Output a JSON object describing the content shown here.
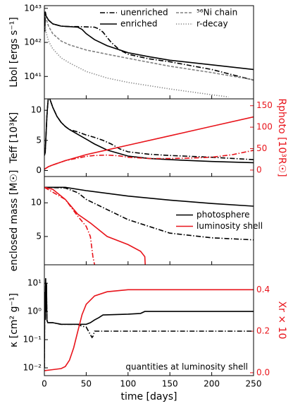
{
  "chart_data": [
    {
      "type": "line",
      "ylabel": "Lbol [ergs s⁻¹]",
      "ylog": true,
      "xlim": [
        0,
        250
      ],
      "xticks": [
        0,
        50,
        100,
        150,
        200,
        250
      ],
      "ylim": [
        2.2e+40,
        1.2e+43
      ],
      "yticks": [
        {
          "value": 1e+41,
          "label": "10⁴¹"
        },
        {
          "value": 1e+42,
          "label": "10⁴²"
        },
        {
          "value": 1e+43,
          "label": "10⁴³"
        }
      ],
      "legend_loc": "upper right",
      "legend_ncol": 2,
      "series": [
        {
          "name": "unenriched",
          "color": "#000000",
          "linestyle": "dashdot",
          "x": [
            0.5,
            1,
            2,
            5,
            10,
            20,
            30,
            40,
            50,
            60,
            65,
            70,
            75,
            80,
            90,
            100,
            125,
            150,
            200,
            250
          ],
          "values": [
            2e+42,
            8e+42,
            6e+42,
            4.5e+42,
            3.5e+42,
            3e+42,
            2.9e+42,
            2.9e+42,
            2.85e+42,
            2.8e+42,
            2.5e+42,
            2e+42,
            1.4e+42,
            1e+42,
            6e+41,
            4.5e+41,
            3.3e+41,
            2.7e+41,
            1.6e+41,
            7.8e+40
          ]
        },
        {
          "name": "enriched",
          "color": "#000000",
          "linestyle": "solid",
          "x": [
            0.5,
            1,
            2,
            5,
            10,
            20,
            30,
            40,
            45,
            50,
            60,
            75,
            100,
            125,
            150,
            200,
            250
          ],
          "values": [
            2e+42,
            8e+42,
            6e+42,
            4.5e+42,
            3.5e+42,
            3e+42,
            2.9e+42,
            2.8e+42,
            2.4e+42,
            1.8e+42,
            1.2e+42,
            8e+41,
            5e+41,
            3.8e+41,
            3e+41,
            2.2e+41,
            1.6e+41
          ]
        },
        {
          "name": "⁵⁶Ni chain",
          "color": "#808080",
          "linestyle": "dashed",
          "x": [
            1,
            2,
            5,
            10,
            20,
            30,
            50,
            75,
            100,
            150,
            200,
            250
          ],
          "values": [
            6e+42,
            5e+42,
            3e+42,
            1.8e+42,
            1.1e+42,
            8.5e+41,
            6e+41,
            4.5e+41,
            3.4e+41,
            2e+41,
            1.3e+41,
            8e+40
          ]
        },
        {
          "name": "r-decay",
          "color": "#808080",
          "linestyle": "dotted",
          "x": [
            0.5,
            1,
            2,
            5,
            10,
            20,
            30,
            50,
            75,
            100,
            150,
            200,
            220
          ],
          "values": [
            2e+42,
            3e+42,
            2e+42,
            1.1e+42,
            6.5e+41,
            3.5e+41,
            2.5e+41,
            1.4e+41,
            9e+40,
            6.7e+40,
            4.3e+40,
            2.9e+40,
            2.5e+40
          ]
        }
      ]
    },
    {
      "type": "line",
      "ylabel": "Teff [10³K]",
      "y2label": "Rphoto [10³R☉]",
      "y2color": "#e8141b",
      "xlim": [
        0,
        250
      ],
      "xticks": [
        0,
        50,
        100,
        150,
        200,
        250
      ],
      "ylim": [
        -1,
        11.9
      ],
      "yticks": [
        0,
        5,
        10
      ],
      "y2lim": [
        -15,
        166
      ],
      "y2ticks": [
        0,
        50,
        100,
        150
      ],
      "series": [
        {
          "color": "#000000",
          "linestyle": "solid",
          "x": [
            0,
            1,
            2,
            3,
            4,
            5,
            10,
            15,
            20,
            25,
            30,
            40,
            50,
            60,
            75,
            100,
            125,
            150,
            200,
            250
          ],
          "values": [
            2.5,
            3,
            6,
            9,
            11,
            12.5,
            10.5,
            9,
            8,
            7.3,
            6.8,
            6,
            5.2,
            4.4,
            3.4,
            2.4,
            2,
            1.8,
            1.5,
            1.3
          ]
        },
        {
          "color": "#000000",
          "linestyle": "dashdot",
          "x": [
            0,
            1,
            2,
            3,
            4,
            5,
            10,
            15,
            20,
            25,
            30,
            40,
            50,
            60,
            70,
            80,
            90,
            100,
            125,
            150,
            200,
            250
          ],
          "values": [
            2.5,
            3,
            6,
            9,
            11,
            12.5,
            10.5,
            9,
            8,
            7.3,
            6.8,
            6.4,
            5.9,
            5.5,
            5,
            4.4,
            3.6,
            3.1,
            2.7,
            2.5,
            2.2,
            1.8
          ]
        },
        {
          "color": "#e8141b",
          "linestyle": "solid",
          "axis": "y2",
          "x": [
            0,
            5,
            10,
            25,
            50,
            75,
            100,
            150,
            200,
            250
          ],
          "values": [
            2,
            8,
            12,
            22,
            36,
            47,
            58,
            80,
            102,
            124
          ]
        },
        {
          "color": "#e8141b",
          "linestyle": "dashdot",
          "axis": "y2",
          "x": [
            0,
            5,
            10,
            25,
            40,
            50,
            60,
            75,
            90,
            100,
            125,
            150,
            175,
            200,
            225,
            250
          ],
          "values": [
            2,
            8,
            12,
            22,
            28,
            32,
            34,
            35,
            33,
            30,
            27,
            27,
            28,
            30,
            36,
            46
          ]
        }
      ]
    },
    {
      "type": "line",
      "ylabel": "enclosed mass [M☉]",
      "xlim": [
        0,
        250
      ],
      "xticks": [
        0,
        50,
        100,
        150,
        200,
        250
      ],
      "ylim": [
        0.8,
        13.9
      ],
      "yticks": [
        5,
        10
      ],
      "legend_loc": "center right",
      "legend_ncol": 1,
      "series": [
        {
          "name": "photosphere",
          "color": "#000000",
          "linestyle": "solid",
          "x": [
            0,
            25,
            50,
            100,
            150,
            200,
            250
          ],
          "values": [
            12.3,
            12.3,
            11.8,
            11,
            10.4,
            9.9,
            9.5
          ]
        },
        {
          "color": "#000000",
          "linestyle": "dashdot",
          "x": [
            0,
            25,
            40,
            50,
            75,
            100,
            150,
            200,
            250
          ],
          "values": [
            12.3,
            12.2,
            11.5,
            10.5,
            9,
            7.5,
            5.5,
            4.8,
            4.5
          ]
        },
        {
          "name": "luminosity shell",
          "color": "#e8141b",
          "linestyle": "solid",
          "x": [
            0,
            10,
            25,
            40,
            55,
            75,
            100,
            115,
            120,
            120.5
          ],
          "values": [
            12.3,
            12,
            10.5,
            8.3,
            7,
            5,
            3.8,
            2.8,
            2,
            0.8
          ]
        },
        {
          "color": "#e8141b",
          "linestyle": "dashdot",
          "x": [
            0,
            25,
            40,
            50,
            55,
            58,
            60
          ],
          "values": [
            12.3,
            10.5,
            8,
            6.5,
            5,
            2,
            0.8
          ]
        }
      ]
    },
    {
      "type": "line",
      "ylabel": "κ [cm² g⁻¹]",
      "y2label": "Xr × 10",
      "y2color": "#e8141b",
      "ylog": true,
      "xlabel": "time [days]",
      "xlim": [
        0,
        250
      ],
      "xticks": [
        0,
        50,
        100,
        150,
        200,
        250
      ],
      "ylim": [
        0.0053,
        45
      ],
      "yticks": [
        {
          "value": 0.01,
          "label": "10⁻²"
        },
        {
          "value": 0.1,
          "label": "10⁻¹"
        },
        {
          "value": 1,
          "label": "10⁰"
        },
        {
          "value": 10,
          "label": "10¹"
        }
      ],
      "y2lim": [
        -0.014,
        0.52
      ],
      "y2ticks": [
        {
          "value": 0,
          "label": "0.0"
        },
        {
          "value": 0.2,
          "label": "0.2"
        },
        {
          "value": 0.4,
          "label": "0.4"
        }
      ],
      "annotation": "quantities at luminosity shell",
      "series": [
        {
          "color": "#000000",
          "linestyle": "solid",
          "x": [
            0,
            0.5,
            1,
            1.5,
            2,
            2.5,
            3,
            4,
            5,
            10,
            20,
            30,
            50,
            55,
            60,
            65,
            70,
            100,
            115,
            120,
            250
          ],
          "values": [
            0.01,
            5,
            0.5,
            15,
            1,
            10,
            0.5,
            0.4,
            0.4,
            0.4,
            0.35,
            0.35,
            0.35,
            0.4,
            0.5,
            0.6,
            0.75,
            0.8,
            0.85,
            1,
            1
          ]
        },
        {
          "color": "#000000",
          "linestyle": "dashdot",
          "x": [
            0,
            0.5,
            1,
            1.5,
            2,
            2.5,
            3,
            4,
            5,
            10,
            20,
            30,
            40,
            45,
            50,
            55,
            57,
            58,
            60,
            70,
            250
          ],
          "values": [
            0.01,
            5,
            0.5,
            15,
            1,
            10,
            0.5,
            0.4,
            0.4,
            0.4,
            0.35,
            0.35,
            0.35,
            0.3,
            0.28,
            0.15,
            0.12,
            0.13,
            0.2,
            0.2,
            0.2
          ]
        },
        {
          "color": "#e8141b",
          "linestyle": "solid",
          "axis": "y2",
          "x": [
            0,
            10,
            20,
            25,
            30,
            35,
            40,
            45,
            50,
            60,
            75,
            100,
            150,
            250
          ],
          "values": [
            0.01,
            0.015,
            0.02,
            0.03,
            0.06,
            0.12,
            0.2,
            0.28,
            0.33,
            0.37,
            0.39,
            0.4,
            0.4,
            0.4
          ]
        }
      ]
    }
  ]
}
